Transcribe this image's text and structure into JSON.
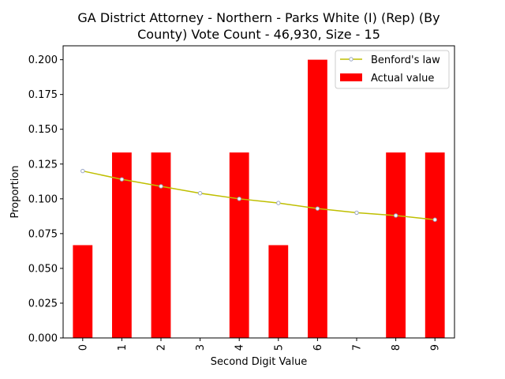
{
  "chart_data": {
    "type": "bar",
    "title": [
      "GA District Attorney - Northern - Parks White (I) (Rep) (By",
      "County) Vote Count - 46,930, Size - 15"
    ],
    "xlabel": "Second Digit Value",
    "ylabel": "Proportion",
    "categories": [
      "0",
      "1",
      "2",
      "3",
      "4",
      "5",
      "6",
      "7",
      "8",
      "9"
    ],
    "ylim": [
      0,
      0.21
    ],
    "yticks": [
      "0.000",
      "0.025",
      "0.050",
      "0.075",
      "0.100",
      "0.125",
      "0.150",
      "0.175",
      "0.200"
    ],
    "grid": false,
    "legend_position": "top-right",
    "series": [
      {
        "name": "Benford's law",
        "kind": "line",
        "color": "#bfbf00",
        "marker_color": "#9aa7c7",
        "values": [
          0.12,
          0.114,
          0.109,
          0.104,
          0.1,
          0.097,
          0.093,
          0.09,
          0.088,
          0.085
        ]
      },
      {
        "name": "Actual value",
        "kind": "bar",
        "color": "#ff0000",
        "values": [
          0.0667,
          0.1333,
          0.1333,
          0.0,
          0.1333,
          0.0667,
          0.2,
          0.0,
          0.1333,
          0.1333
        ]
      }
    ]
  }
}
